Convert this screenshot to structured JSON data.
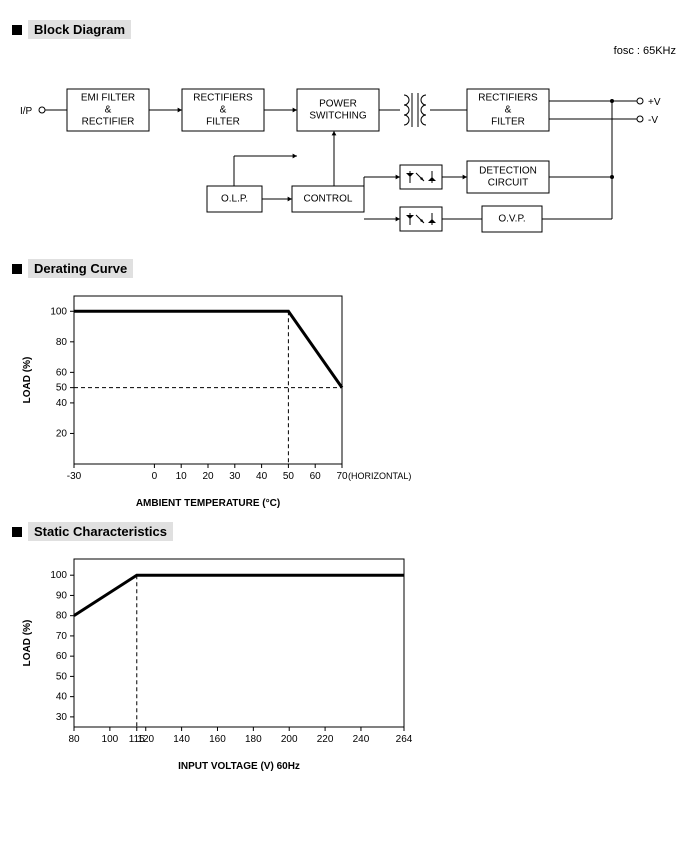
{
  "sections": {
    "block": "Block Diagram",
    "derating": "Derating Curve",
    "static": "Static Characteristics"
  },
  "fosc": "fosc : 65KHz",
  "block_diagram": {
    "io_label": "I/P",
    "out_plus": "+V",
    "out_minus": "-V",
    "nodes": {
      "emi": [
        "EMI FILTER",
        "&",
        "RECTIFIER"
      ],
      "rect1": [
        "RECTIFIERS",
        "&",
        "FILTER"
      ],
      "pswitch": [
        "POWER",
        "SWITCHING"
      ],
      "rect2": [
        "RECTIFIERS",
        "&",
        "FILTER"
      ],
      "olp": "O.L.P.",
      "control": "CONTROL",
      "detect": [
        "DETECTION",
        "CIRCUIT"
      ],
      "ovp": "O.V.P."
    },
    "stroke": "#000000",
    "bg": "#ffffff",
    "font_size": 10
  },
  "derating_chart": {
    "type": "line",
    "x_ticks": [
      -30,
      0,
      10,
      20,
      30,
      40,
      50,
      60,
      70
    ],
    "y_ticks": [
      20,
      40,
      50,
      60,
      80,
      100
    ],
    "x_label": "AMBIENT TEMPERATURE (°C)",
    "y_label": "LOAD (%)",
    "extra_label": "(HORIZONTAL)",
    "xlim": [
      -30,
      70
    ],
    "ylim": [
      0,
      110
    ],
    "line_color": "#000000",
    "line_width": 3,
    "dash_color": "#000000",
    "series": {
      "x": [
        -30,
        50,
        70
      ],
      "y": [
        100,
        100,
        50
      ]
    },
    "drop_x": 50,
    "drop_y": 100,
    "dash2_x": 70,
    "dash2_y": 50,
    "font_size": 10
  },
  "static_chart": {
    "type": "line",
    "x_ticks": [
      80,
      100,
      115,
      120,
      140,
      160,
      180,
      200,
      220,
      240,
      264
    ],
    "y_ticks": [
      30,
      40,
      50,
      60,
      70,
      80,
      90,
      100
    ],
    "x_label": "INPUT VOLTAGE (V) 60Hz",
    "y_label": "LOAD (%)",
    "xlim": [
      80,
      264
    ],
    "ylim": [
      25,
      108
    ],
    "line_color": "#000000",
    "line_width": 3,
    "series": {
      "x": [
        80,
        115,
        264
      ],
      "y": [
        80,
        100,
        100
      ]
    },
    "drop_x": 115,
    "drop_y": 100,
    "font_size": 10
  }
}
